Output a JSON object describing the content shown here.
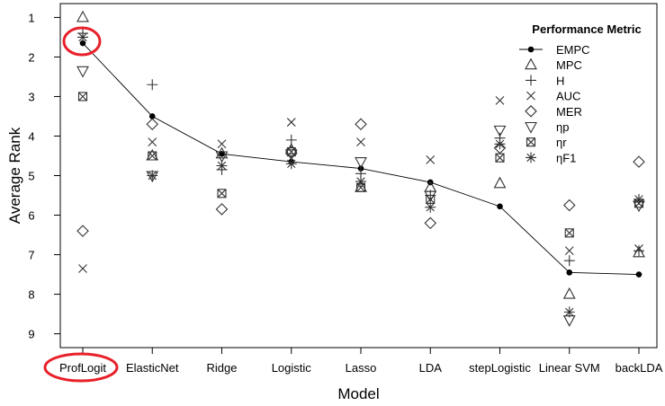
{
  "chart_data": {
    "type": "scatter",
    "xlabel": "Model",
    "ylabel": "Average Rank",
    "categories": [
      "ProfLogit",
      "ElasticNet",
      "Ridge",
      "Logistic",
      "Lasso",
      "LDA",
      "stepLogistic",
      "Linear SVM",
      "backLDA"
    ],
    "ylim": [
      9.35,
      0.65
    ],
    "y_reversed": true,
    "yticks": [
      1,
      2,
      3,
      4,
      5,
      6,
      7,
      8,
      9
    ],
    "grid": false,
    "legend": {
      "title": "Performance Metric",
      "position": "top-right",
      "entries": [
        "EMPC",
        "MPC",
        "H",
        "AUC",
        "MER",
        "ηp",
        "ηr",
        "ηF1"
      ]
    },
    "series": [
      {
        "name": "EMPC",
        "marker": "dot-line",
        "values": [
          1.65,
          3.5,
          4.45,
          4.65,
          4.82,
          5.17,
          5.78,
          7.45,
          7.5
        ]
      },
      {
        "name": "MPC",
        "marker": "triangle-up",
        "values": [
          1.0,
          4.5,
          4.45,
          4.35,
          5.3,
          5.3,
          5.2,
          8.0,
          6.95
        ]
      },
      {
        "name": "H",
        "marker": "plus",
        "values": [
          1.4,
          2.7,
          4.85,
          4.1,
          4.95,
          5.5,
          4.05,
          7.15,
          6.9
        ]
      },
      {
        "name": "AUC",
        "marker": "cross",
        "values": [
          7.35,
          4.15,
          4.2,
          3.65,
          4.15,
          4.6,
          3.1,
          6.9,
          6.85
        ]
      },
      {
        "name": "MER",
        "marker": "diamond",
        "values": [
          6.4,
          3.7,
          5.85,
          4.4,
          3.7,
          6.2,
          4.3,
          5.75,
          4.65
        ]
      },
      {
        "name": "ηp",
        "marker": "triangle-down",
        "values": [
          2.35,
          5.0,
          4.5,
          4.45,
          4.65,
          5.5,
          3.85,
          8.65,
          5.75
        ]
      },
      {
        "name": "ηr",
        "marker": "box-x",
        "values": [
          3.0,
          4.5,
          5.45,
          4.4,
          5.3,
          5.6,
          4.55,
          6.45,
          5.7
        ]
      },
      {
        "name": "ηF1",
        "marker": "asterisk",
        "values": [
          1.5,
          5.0,
          4.75,
          4.7,
          5.15,
          5.8,
          4.2,
          8.45,
          5.6
        ]
      }
    ],
    "annotations": [
      {
        "type": "ellipse",
        "color": "#e8202a",
        "target": "EMPC point of ProfLogit"
      },
      {
        "type": "ellipse",
        "color": "#e8202a",
        "target": "ProfLogit tick label"
      }
    ]
  }
}
